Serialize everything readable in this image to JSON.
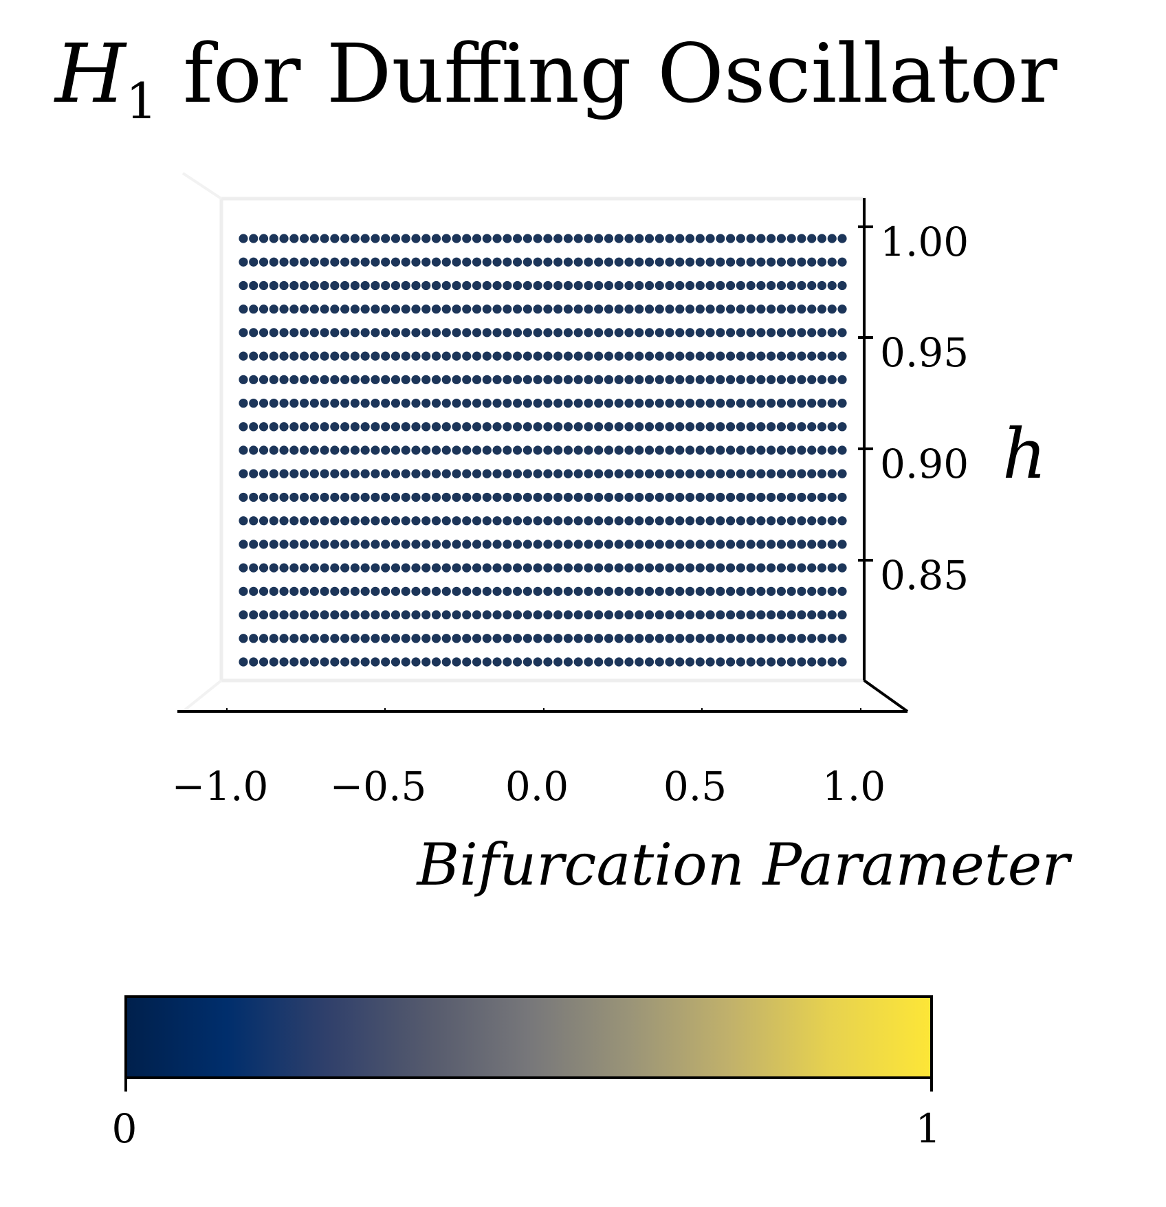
{
  "chart_data": {
    "type": "scatter",
    "title_symbol": "H",
    "title_subscript": "1",
    "title_rest": " for Duffing Oscillator",
    "xlabel": "Bifurcation Parameter",
    "ylabel": "h",
    "xlim": [
      -1.0,
      1.0
    ],
    "ylim": [
      0.8,
      1.0
    ],
    "x_ticks": [
      "−1.0",
      "−0.5",
      "0.0",
      "0.5",
      "1.0"
    ],
    "x_tick_values": [
      -1.0,
      -0.5,
      0.0,
      0.5,
      1.0
    ],
    "y_ticks": [
      "1.00",
      "0.95",
      "0.90",
      "0.85"
    ],
    "y_tick_values": [
      1.0,
      0.95,
      0.9,
      0.85
    ],
    "grid": false,
    "point_grid": {
      "x_start": -0.95,
      "x_end": 0.95,
      "x_count": 60,
      "y_start": 0.81,
      "y_end": 0.99,
      "y_count": 19,
      "value": 0
    },
    "colorbar": {
      "min": 0,
      "max": 1,
      "min_label": "0",
      "max_label": "1",
      "colormap": [
        "#00204c",
        "#002e6c",
        "#30406b",
        "#555a6d",
        "#77777a",
        "#9a9478",
        "#c1b16b",
        "#e7d24f",
        "#fde637"
      ]
    },
    "point_color": "#1c3559"
  }
}
